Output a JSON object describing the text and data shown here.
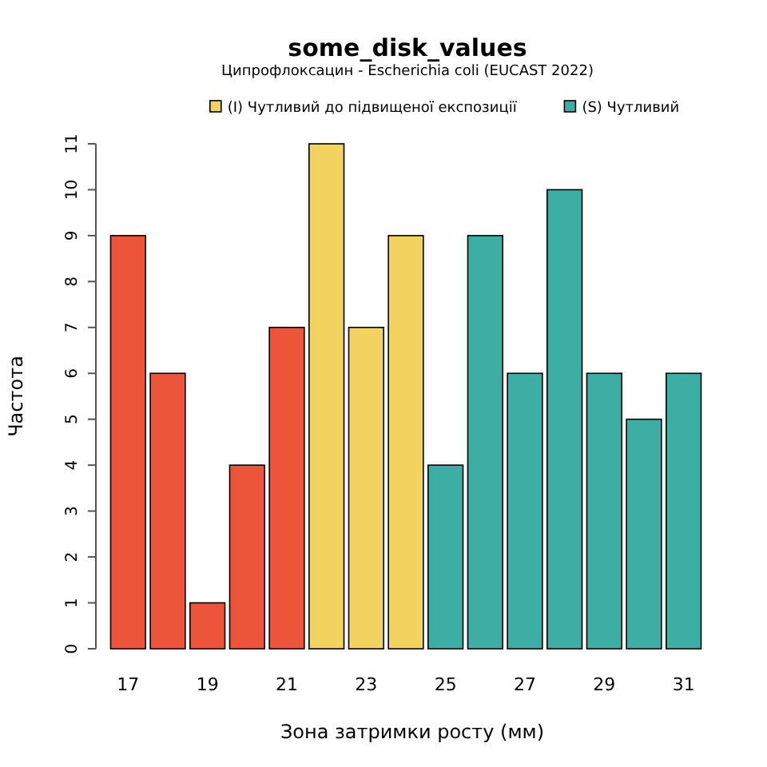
{
  "chart_data": {
    "type": "bar",
    "title": "some_disk_values",
    "subtitle": "Ципрофлоксацин - Escherichia coli (EUCAST 2022)",
    "xlabel": "Зона затримки росту (мм)",
    "ylabel": "Частота",
    "categories": [
      "17",
      null,
      "19",
      null,
      "21",
      null,
      "23",
      null,
      "25",
      null,
      "27",
      null,
      "29",
      null,
      "31"
    ],
    "series": [
      {
        "color": "#ed553b",
        "values": [
          9,
          6,
          1,
          4,
          7,
          null,
          null,
          null,
          null,
          null,
          null,
          null,
          null,
          null,
          null
        ]
      },
      {
        "name": "(I) Чутливий до підвищеної експозиції",
        "color": "#f2d35f",
        "values": [
          null,
          null,
          null,
          null,
          null,
          11,
          7,
          9,
          null,
          null,
          null,
          null,
          null,
          null,
          null
        ]
      },
      {
        "name": "(S) Чутливий",
        "color": "#3caea3",
        "values": [
          null,
          null,
          null,
          null,
          null,
          null,
          null,
          null,
          4,
          9,
          6,
          10,
          6,
          5,
          6
        ]
      }
    ],
    "ylim": [
      0,
      11
    ],
    "yticks": [
      0,
      1,
      2,
      3,
      4,
      5,
      6,
      7,
      8,
      9,
      10,
      11
    ],
    "grid": false,
    "legend": "top right"
  }
}
